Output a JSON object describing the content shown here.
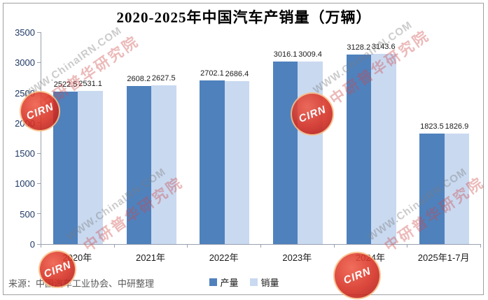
{
  "source": {
    "text": "来源：中国汽车工业协会、中研整理"
  },
  "watermark": {
    "logo_text": "CIRN",
    "url_text": "WWW.ChinaIRN.COM",
    "org_text": "中研普华研究院"
  },
  "colors": {
    "production_bar": "#4f81bd",
    "sales_bar": "#c9d9f0",
    "axis_line": "#98a0ae",
    "y_axis_label": "#1f3864",
    "watermark_red": "#cd4646",
    "watermark_gray": "#7d7d7d"
  },
  "chart_data": {
    "type": "bar",
    "title": "2020-2025年中国汽车产销量（万辆）",
    "categories": [
      "2020年",
      "2021年",
      "2022年",
      "2023年",
      "2024年",
      "2025年1-7月"
    ],
    "series": [
      {
        "key": "production",
        "name": "产量",
        "color": "#4f81bd",
        "values": [
          2522.5,
          2608.2,
          2702.1,
          3016.1,
          3128.2,
          1823.5
        ]
      },
      {
        "key": "sales",
        "name": "销量",
        "color": "#c9d9f0",
        "values": [
          2531.1,
          2627.5,
          2686.4,
          3009.4,
          3143.6,
          1826.9
        ]
      }
    ],
    "xlabel": "",
    "ylabel": "",
    "ylim": [
      0,
      3500
    ],
    "ytick_step": 500,
    "grid": false,
    "legend_position": "bottom-center",
    "value_labels": true
  }
}
